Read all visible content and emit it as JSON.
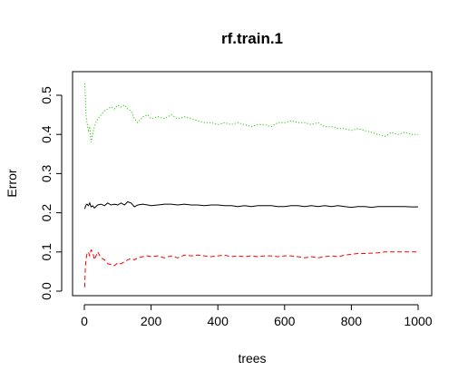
{
  "chart_data": {
    "type": "line",
    "title": "rf.train.1",
    "xlabel": "trees",
    "ylabel": "Error",
    "xlim": [
      0,
      1000
    ],
    "ylim": [
      0.0,
      0.55
    ],
    "x_ticks": [
      0,
      200,
      400,
      600,
      800,
      1000
    ],
    "y_ticks": [
      0.0,
      0.1,
      0.2,
      0.3,
      0.4,
      0.5
    ],
    "x_tick_labels": [
      "0",
      "200",
      "400",
      "600",
      "800",
      "1000"
    ],
    "y_tick_labels": [
      "0.0",
      "0.1",
      "0.2",
      "0.3",
      "0.4",
      "0.5"
    ],
    "grid": false,
    "legend": "none",
    "x": [
      1,
      3,
      5,
      8,
      12,
      16,
      20,
      25,
      30,
      40,
      50,
      60,
      70,
      80,
      90,
      100,
      110,
      120,
      130,
      140,
      150,
      160,
      175,
      190,
      200,
      220,
      240,
      260,
      280,
      300,
      320,
      340,
      360,
      380,
      400,
      420,
      440,
      460,
      480,
      500,
      520,
      540,
      560,
      580,
      600,
      620,
      640,
      660,
      680,
      700,
      720,
      740,
      760,
      780,
      800,
      820,
      840,
      860,
      880,
      900,
      920,
      940,
      960,
      980,
      1000
    ],
    "series": [
      {
        "color": "#000000",
        "linestyle": "solid",
        "values": [
          0.21,
          0.215,
          0.22,
          0.222,
          0.218,
          0.225,
          0.215,
          0.218,
          0.212,
          0.22,
          0.222,
          0.218,
          0.225,
          0.22,
          0.222,
          0.22,
          0.225,
          0.22,
          0.228,
          0.225,
          0.215,
          0.22,
          0.222,
          0.22,
          0.218,
          0.22,
          0.222,
          0.222,
          0.22,
          0.222,
          0.22,
          0.22,
          0.218,
          0.22,
          0.22,
          0.218,
          0.218,
          0.216,
          0.218,
          0.216,
          0.218,
          0.218,
          0.218,
          0.216,
          0.216,
          0.218,
          0.218,
          0.216,
          0.218,
          0.216,
          0.218,
          0.216,
          0.218,
          0.216,
          0.214,
          0.216,
          0.216,
          0.214,
          0.216,
          0.216,
          0.216,
          0.216,
          0.216,
          0.215,
          0.215
        ]
      },
      {
        "color": "#ff0000",
        "linestyle": "dashed",
        "values": [
          0.01,
          0.06,
          0.08,
          0.095,
          0.1,
          0.09,
          0.105,
          0.1,
          0.08,
          0.1,
          0.085,
          0.08,
          0.07,
          0.068,
          0.065,
          0.072,
          0.07,
          0.075,
          0.08,
          0.083,
          0.08,
          0.085,
          0.088,
          0.09,
          0.088,
          0.09,
          0.085,
          0.09,
          0.085,
          0.092,
          0.09,
          0.092,
          0.09,
          0.088,
          0.09,
          0.092,
          0.088,
          0.09,
          0.088,
          0.09,
          0.088,
          0.09,
          0.09,
          0.088,
          0.09,
          0.09,
          0.088,
          0.085,
          0.088,
          0.085,
          0.088,
          0.09,
          0.088,
          0.092,
          0.094,
          0.096,
          0.096,
          0.097,
          0.098,
          0.1,
          0.1,
          0.1,
          0.1,
          0.1,
          0.1
        ]
      },
      {
        "color": "#22cc00",
        "linestyle": "dotted",
        "values": [
          0.53,
          0.5,
          0.45,
          0.43,
          0.41,
          0.42,
          0.38,
          0.4,
          0.42,
          0.44,
          0.45,
          0.46,
          0.465,
          0.47,
          0.465,
          0.475,
          0.47,
          0.475,
          0.465,
          0.46,
          0.44,
          0.43,
          0.445,
          0.45,
          0.44,
          0.445,
          0.44,
          0.45,
          0.44,
          0.445,
          0.44,
          0.435,
          0.43,
          0.43,
          0.425,
          0.43,
          0.425,
          0.43,
          0.425,
          0.42,
          0.425,
          0.425,
          0.42,
          0.43,
          0.43,
          0.435,
          0.43,
          0.43,
          0.425,
          0.43,
          0.42,
          0.42,
          0.415,
          0.415,
          0.41,
          0.415,
          0.41,
          0.405,
          0.4,
          0.395,
          0.405,
          0.4,
          0.405,
          0.4,
          0.4
        ]
      }
    ]
  }
}
